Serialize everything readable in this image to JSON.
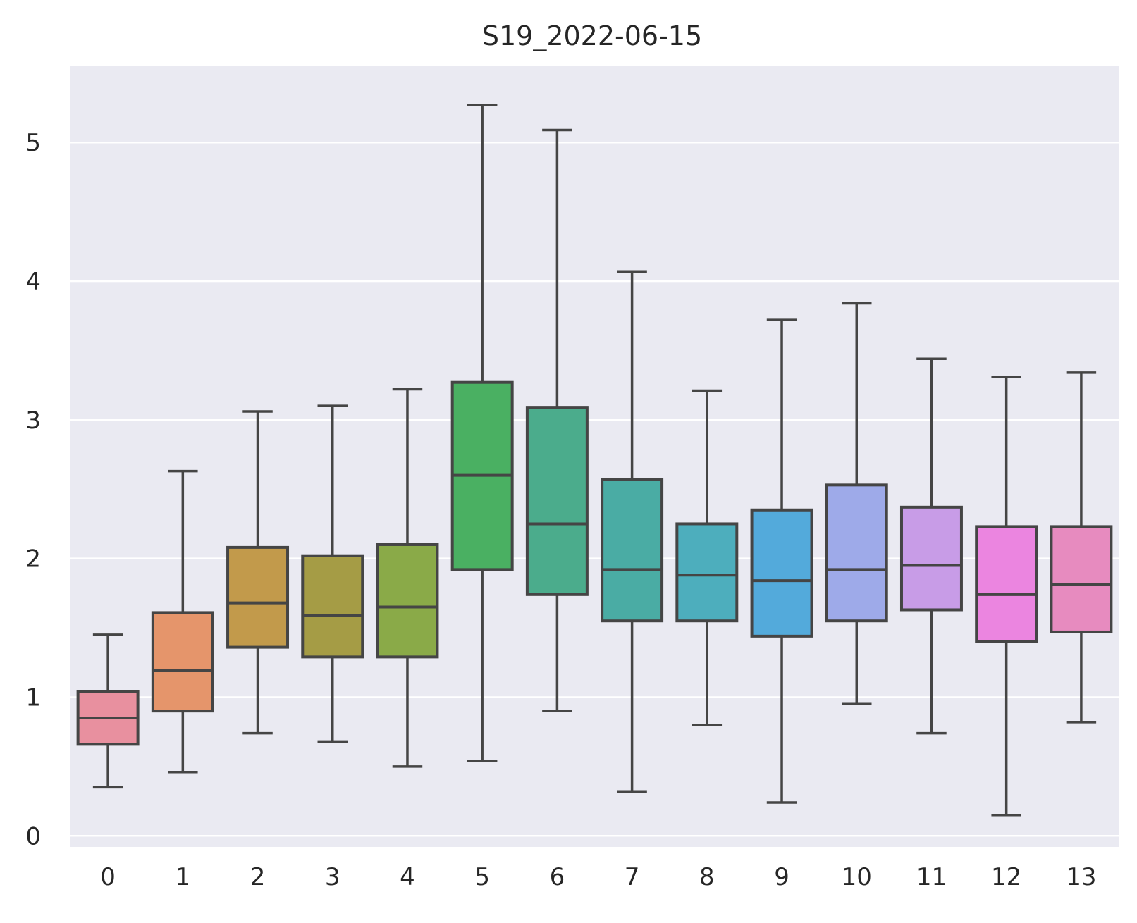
{
  "chart_data": {
    "type": "box",
    "title": "S19_2022-06-15",
    "xlabel": "",
    "ylabel": "",
    "categories": [
      "0",
      "1",
      "2",
      "3",
      "4",
      "5",
      "6",
      "7",
      "8",
      "9",
      "10",
      "11",
      "12",
      "13"
    ],
    "y_ticks": [
      "0",
      "1",
      "2",
      "3",
      "4",
      "5"
    ],
    "ylim": [
      -0.08,
      5.55
    ],
    "grid": true,
    "background": "#eaeaf2",
    "box_edge_color": "#454545",
    "colors": [
      "#e8909f",
      "#e5956b",
      "#c29a4b",
      "#a59c45",
      "#8aaa48",
      "#4ab062",
      "#4bac8c",
      "#4aaca4",
      "#4daebd",
      "#53aadb",
      "#9eaae9",
      "#c89ce7",
      "#eb85e0",
      "#e78bbf"
    ],
    "boxes": [
      {
        "category": "0",
        "whisker_low": 0.35,
        "q1": 0.66,
        "median": 0.85,
        "q3": 1.04,
        "whisker_high": 1.45
      },
      {
        "category": "1",
        "whisker_low": 0.46,
        "q1": 0.9,
        "median": 1.19,
        "q3": 1.61,
        "whisker_high": 2.63
      },
      {
        "category": "2",
        "whisker_low": 0.74,
        "q1": 1.36,
        "median": 1.68,
        "q3": 2.08,
        "whisker_high": 3.06
      },
      {
        "category": "3",
        "whisker_low": 0.68,
        "q1": 1.29,
        "median": 1.59,
        "q3": 2.02,
        "whisker_high": 3.1
      },
      {
        "category": "4",
        "whisker_low": 0.5,
        "q1": 1.29,
        "median": 1.65,
        "q3": 2.1,
        "whisker_high": 3.22
      },
      {
        "category": "5",
        "whisker_low": 0.54,
        "q1": 1.92,
        "median": 2.6,
        "q3": 3.27,
        "whisker_high": 5.27
      },
      {
        "category": "6",
        "whisker_low": 0.9,
        "q1": 1.74,
        "median": 2.25,
        "q3": 3.09,
        "whisker_high": 5.09
      },
      {
        "category": "7",
        "whisker_low": 0.32,
        "q1": 1.55,
        "median": 1.92,
        "q3": 2.57,
        "whisker_high": 4.07
      },
      {
        "category": "8",
        "whisker_low": 0.8,
        "q1": 1.55,
        "median": 1.88,
        "q3": 2.25,
        "whisker_high": 3.21
      },
      {
        "category": "9",
        "whisker_low": 0.24,
        "q1": 1.44,
        "median": 1.84,
        "q3": 2.35,
        "whisker_high": 3.72
      },
      {
        "category": "10",
        "whisker_low": 0.95,
        "q1": 1.55,
        "median": 1.92,
        "q3": 2.53,
        "whisker_high": 3.84
      },
      {
        "category": "11",
        "whisker_low": 0.74,
        "q1": 1.63,
        "median": 1.95,
        "q3": 2.37,
        "whisker_high": 3.44
      },
      {
        "category": "12",
        "whisker_low": 0.15,
        "q1": 1.4,
        "median": 1.74,
        "q3": 2.23,
        "whisker_high": 3.31
      },
      {
        "category": "13",
        "whisker_low": 0.82,
        "q1": 1.47,
        "median": 1.81,
        "q3": 2.23,
        "whisker_high": 3.34
      }
    ]
  }
}
